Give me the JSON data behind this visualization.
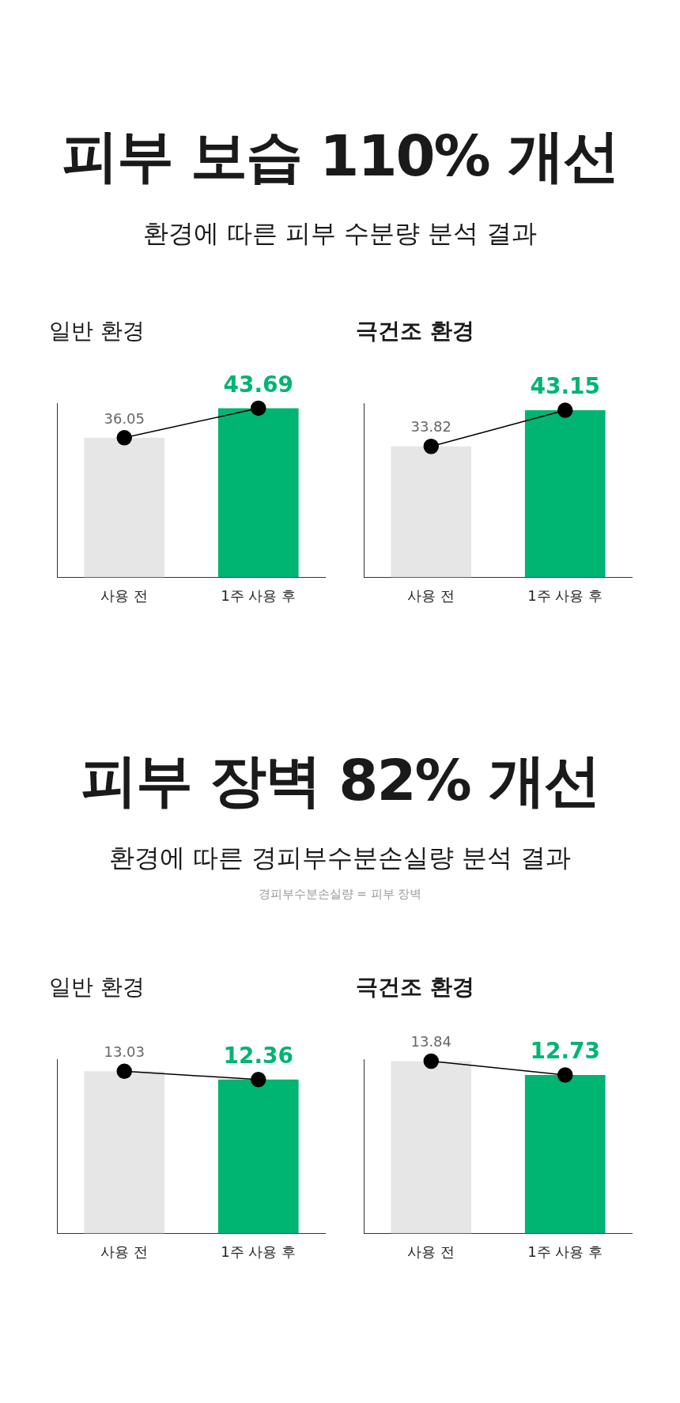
{
  "chart_data": [
    {
      "type": "other",
      "title": "피부 보습 110% 개선",
      "subtitle": "환경에 따른 피부 수분량 분석 결과"
    },
    {
      "type": "bar",
      "title": "일반 환경",
      "categories": [
        "사용 전",
        "1주 사용 후"
      ],
      "series": [
        {
          "colors": [
            "#e6e6e6",
            "#00b472"
          ],
          "values": [
            36.05,
            43.69
          ],
          "value_labels": [
            "36.05",
            "43.69"
          ]
        },
        {
          "type": "line",
          "color": "#000000",
          "marker": "circle",
          "values": [
            36.05,
            43.69
          ]
        }
      ],
      "legend": false,
      "grid": false
    },
    {
      "type": "bar",
      "title": "극건조 환경",
      "categories": [
        "사용 전",
        "1주 사용 후"
      ],
      "series": [
        {
          "colors": [
            "#e6e6e6",
            "#00b472"
          ],
          "values": [
            33.82,
            43.15
          ],
          "value_labels": [
            "33.82",
            "43.15"
          ]
        },
        {
          "type": "line",
          "color": "#000000",
          "marker": "circle",
          "values": [
            33.82,
            43.15
          ]
        }
      ],
      "legend": false,
      "grid": false
    },
    {
      "type": "other",
      "title": "피부 장벽 82% 개선",
      "subtitle": "환경에 따른 경피부수분손실량 분석 결과",
      "annotations": [
        "경피부수분손실량 = 피부 장벽"
      ]
    },
    {
      "type": "bar",
      "title": "일반 환경",
      "categories": [
        "사용 전",
        "1주 사용 후"
      ],
      "series": [
        {
          "colors": [
            "#e6e6e6",
            "#00b472"
          ],
          "values": [
            13.03,
            12.36
          ],
          "value_labels": [
            "13.03",
            "12.36"
          ]
        },
        {
          "type": "line",
          "color": "#000000",
          "marker": "circle",
          "values": [
            13.03,
            12.36
          ]
        }
      ],
      "legend": false,
      "grid": false
    },
    {
      "type": "bar",
      "title": "극건조 환경",
      "categories": [
        "사용 전",
        "1주 사용 후"
      ],
      "series": [
        {
          "colors": [
            "#e6e6e6",
            "#00b472"
          ],
          "values": [
            13.84,
            12.73
          ],
          "value_labels": [
            "13.84",
            "12.73"
          ]
        },
        {
          "type": "line",
          "color": "#000000",
          "marker": "circle",
          "values": [
            13.84,
            12.73
          ]
        }
      ],
      "legend": false,
      "grid": false
    }
  ]
}
